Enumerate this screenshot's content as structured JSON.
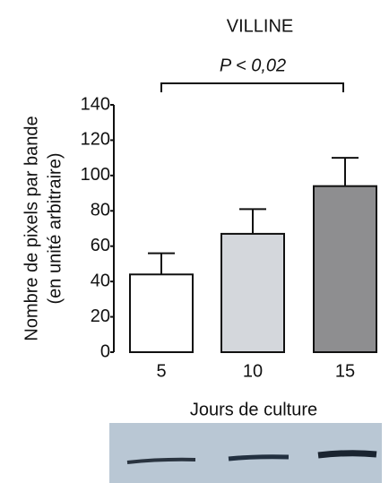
{
  "chart_data": {
    "type": "bar",
    "title": "VILLINE",
    "annotation": "P < 0,02",
    "ylabel": [
      "Nombre de pixels par bande",
      "(en unité arbitraire)"
    ],
    "xlabel": "Jours de culture",
    "categories": [
      "5",
      "10",
      "15"
    ],
    "values": [
      44,
      67,
      94
    ],
    "errors": [
      12,
      14,
      16
    ],
    "colors": [
      "#ffffff",
      "#d4d7dc",
      "#8e8e90"
    ],
    "ylim": [
      0,
      140
    ],
    "yticks": [
      0,
      20,
      40,
      60,
      80,
      100,
      120,
      140
    ],
    "grid": false
  }
}
